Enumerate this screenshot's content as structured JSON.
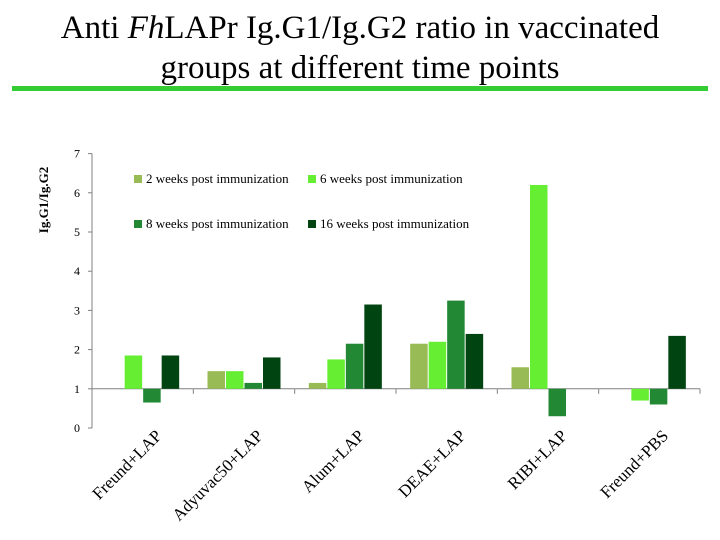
{
  "title": {
    "line1_pre": "Anti ",
    "line1_italic": "Fh",
    "line1_post": "LAPr Ig.G1/Ig.G2 ratio in vaccinated",
    "line2": "groups at different time points"
  },
  "colors": {
    "title_rule": "#33cc33"
  },
  "chart_data": {
    "type": "bar",
    "ylabel": "Ig.G1/Ig.G2",
    "xlabel": "",
    "ylim": [
      0,
      7
    ],
    "yticks": [
      0,
      1,
      2,
      3,
      4,
      5,
      6,
      7
    ],
    "grid": false,
    "legend_position": "top-center",
    "baseline": 1,
    "categories": [
      "Freund+LAP",
      "Adyuvac50+LAP",
      "Alum+LAP",
      "DEAE+LAP",
      "RIBI+LAP",
      "Freund+PBS"
    ],
    "series": [
      {
        "name": "2 weeks post immunization",
        "color": "#99bb55",
        "values": [
          null,
          1.45,
          1.15,
          2.15,
          1.55,
          null
        ]
      },
      {
        "name": "6 weeks post immunization",
        "color": "#66ee33",
        "values": [
          1.85,
          1.45,
          1.75,
          2.2,
          6.2,
          0.7
        ]
      },
      {
        "name": "8 weeks post immunization",
        "color": "#228833",
        "values": [
          0.65,
          1.15,
          2.15,
          3.25,
          0.3,
          0.6
        ]
      },
      {
        "name": "16 weeks post immunization",
        "color": "#004411",
        "values": [
          1.85,
          1.8,
          3.15,
          2.4,
          null,
          2.35
        ]
      }
    ]
  }
}
